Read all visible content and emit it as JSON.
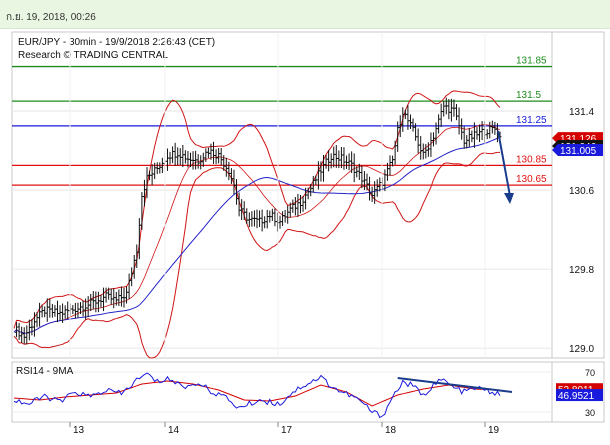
{
  "header": {
    "timestamp": "ก.ย. 19, 2018, 00:26"
  },
  "chart_data": {
    "type": "line",
    "title": "EUR/JPY - 30min - 19/9/2018 2:26:43 (CET)",
    "subtitle": "Research © TRADING CENTRAL",
    "price_axis": {
      "ticks": [
        129.0,
        129.8,
        130.6,
        131.4
      ],
      "ylim": [
        128.9,
        132.2
      ]
    },
    "time_axis": {
      "ticks": [
        "13",
        "14",
        "17",
        "18",
        "19"
      ]
    },
    "levels": [
      {
        "value": 131.85,
        "label": "131.85",
        "color": "#1e8c1e"
      },
      {
        "value": 131.5,
        "label": "131.5",
        "color": "#1e8c1e"
      },
      {
        "value": 131.25,
        "label": "131.25",
        "color": "#1a1adc"
      },
      {
        "value": 130.85,
        "label": "130.85",
        "color": "#e01010"
      },
      {
        "value": 130.65,
        "label": "130.65",
        "color": "#e01010"
      }
    ],
    "price_tags": [
      {
        "value": 131.126,
        "label": "131.126",
        "bg": "#d40000"
      },
      {
        "value": 131.046,
        "label": "131.046",
        "bg": "#111111"
      },
      {
        "value": 131.005,
        "label": "131.005",
        "bg": "#1a1adc"
      }
    ],
    "price_series": [
      {
        "i": 0,
        "v": 129.2
      },
      {
        "i": 4,
        "v": 129.12
      },
      {
        "i": 8,
        "v": 129.28
      },
      {
        "i": 12,
        "v": 129.38
      },
      {
        "i": 18,
        "v": 129.35
      },
      {
        "i": 24,
        "v": 129.4
      },
      {
        "i": 30,
        "v": 129.45
      },
      {
        "i": 36,
        "v": 129.52
      },
      {
        "i": 40,
        "v": 129.48
      },
      {
        "i": 44,
        "v": 129.55
      },
      {
        "i": 48,
        "v": 130.0
      },
      {
        "i": 50,
        "v": 130.55
      },
      {
        "i": 52,
        "v": 130.72
      },
      {
        "i": 56,
        "v": 130.82
      },
      {
        "i": 60,
        "v": 130.95
      },
      {
        "i": 64,
        "v": 130.98
      },
      {
        "i": 68,
        "v": 130.92
      },
      {
        "i": 72,
        "v": 130.9
      },
      {
        "i": 76,
        "v": 131.0
      },
      {
        "i": 80,
        "v": 130.95
      },
      {
        "i": 84,
        "v": 130.8
      },
      {
        "i": 86,
        "v": 130.65
      },
      {
        "i": 88,
        "v": 130.4
      },
      {
        "i": 92,
        "v": 130.3
      },
      {
        "i": 96,
        "v": 130.28
      },
      {
        "i": 100,
        "v": 130.35
      },
      {
        "i": 104,
        "v": 130.28
      },
      {
        "i": 108,
        "v": 130.4
      },
      {
        "i": 112,
        "v": 130.48
      },
      {
        "i": 116,
        "v": 130.62
      },
      {
        "i": 120,
        "v": 130.8
      },
      {
        "i": 124,
        "v": 130.95
      },
      {
        "i": 128,
        "v": 130.92
      },
      {
        "i": 132,
        "v": 130.85
      },
      {
        "i": 136,
        "v": 130.72
      },
      {
        "i": 140,
        "v": 130.55
      },
      {
        "i": 144,
        "v": 130.68
      },
      {
        "i": 148,
        "v": 130.9
      },
      {
        "i": 150,
        "v": 131.2
      },
      {
        "i": 152,
        "v": 131.4
      },
      {
        "i": 156,
        "v": 131.2
      },
      {
        "i": 160,
        "v": 130.95
      },
      {
        "i": 164,
        "v": 131.15
      },
      {
        "i": 168,
        "v": 131.45
      },
      {
        "i": 172,
        "v": 131.4
      },
      {
        "i": 174,
        "v": 131.25
      },
      {
        "i": 176,
        "v": 131.1
      },
      {
        "i": 180,
        "v": 131.15
      },
      {
        "i": 184,
        "v": 131.2
      },
      {
        "i": 188,
        "v": 131.22
      },
      {
        "i": 190,
        "v": 131.13
      }
    ],
    "projection": {
      "from_value": 131.2,
      "to_value": 130.6
    },
    "indicator": {
      "label": "RSI14 - 9MA",
      "ticks": [
        30,
        70
      ],
      "ylim": [
        20,
        80
      ],
      "tags": [
        {
          "value": 52.8011,
          "label": "52.8011",
          "bg": "#d40000"
        },
        {
          "value": 46.9521,
          "label": "46.9521",
          "bg": "#1a1adc"
        }
      ],
      "rsi_series": [
        {
          "i": 0,
          "v": 42
        },
        {
          "i": 6,
          "v": 38
        },
        {
          "i": 12,
          "v": 46
        },
        {
          "i": 18,
          "v": 40
        },
        {
          "i": 24,
          "v": 50
        },
        {
          "i": 30,
          "v": 45
        },
        {
          "i": 36,
          "v": 52
        },
        {
          "i": 42,
          "v": 48
        },
        {
          "i": 48,
          "v": 62
        },
        {
          "i": 52,
          "v": 68
        },
        {
          "i": 56,
          "v": 60
        },
        {
          "i": 60,
          "v": 64
        },
        {
          "i": 64,
          "v": 58
        },
        {
          "i": 68,
          "v": 55
        },
        {
          "i": 72,
          "v": 60
        },
        {
          "i": 76,
          "v": 52
        },
        {
          "i": 80,
          "v": 48
        },
        {
          "i": 84,
          "v": 42
        },
        {
          "i": 88,
          "v": 34
        },
        {
          "i": 92,
          "v": 38
        },
        {
          "i": 96,
          "v": 42
        },
        {
          "i": 100,
          "v": 40
        },
        {
          "i": 104,
          "v": 38
        },
        {
          "i": 108,
          "v": 48
        },
        {
          "i": 112,
          "v": 55
        },
        {
          "i": 116,
          "v": 60
        },
        {
          "i": 120,
          "v": 65
        },
        {
          "i": 124,
          "v": 56
        },
        {
          "i": 128,
          "v": 50
        },
        {
          "i": 132,
          "v": 46
        },
        {
          "i": 136,
          "v": 40
        },
        {
          "i": 140,
          "v": 30
        },
        {
          "i": 144,
          "v": 26
        },
        {
          "i": 148,
          "v": 45
        },
        {
          "i": 152,
          "v": 60
        },
        {
          "i": 156,
          "v": 56
        },
        {
          "i": 160,
          "v": 46
        },
        {
          "i": 164,
          "v": 58
        },
        {
          "i": 168,
          "v": 62
        },
        {
          "i": 172,
          "v": 54
        },
        {
          "i": 176,
          "v": 50
        },
        {
          "i": 180,
          "v": 54
        },
        {
          "i": 184,
          "v": 52
        },
        {
          "i": 188,
          "v": 49
        },
        {
          "i": 190,
          "v": 47
        }
      ],
      "ma_series": [
        {
          "i": 0,
          "v": 44
        },
        {
          "i": 10,
          "v": 42
        },
        {
          "i": 20,
          "v": 45
        },
        {
          "i": 30,
          "v": 47
        },
        {
          "i": 40,
          "v": 49
        },
        {
          "i": 50,
          "v": 58
        },
        {
          "i": 60,
          "v": 61
        },
        {
          "i": 70,
          "v": 58
        },
        {
          "i": 80,
          "v": 52
        },
        {
          "i": 90,
          "v": 42
        },
        {
          "i": 100,
          "v": 41
        },
        {
          "i": 110,
          "v": 46
        },
        {
          "i": 120,
          "v": 57
        },
        {
          "i": 130,
          "v": 50
        },
        {
          "i": 140,
          "v": 36
        },
        {
          "i": 150,
          "v": 47
        },
        {
          "i": 160,
          "v": 53
        },
        {
          "i": 170,
          "v": 57
        },
        {
          "i": 180,
          "v": 53
        },
        {
          "i": 190,
          "v": 52
        }
      ],
      "trendline": {
        "from_value": 64,
        "to_value": 50
      }
    },
    "colors": {
      "price": "#111111",
      "bollinger": "#d01515",
      "ma": "#2424c8",
      "rsi": "#1a1adc",
      "rsi_ma": "#d40000",
      "projection": "#1a3c8c"
    }
  }
}
